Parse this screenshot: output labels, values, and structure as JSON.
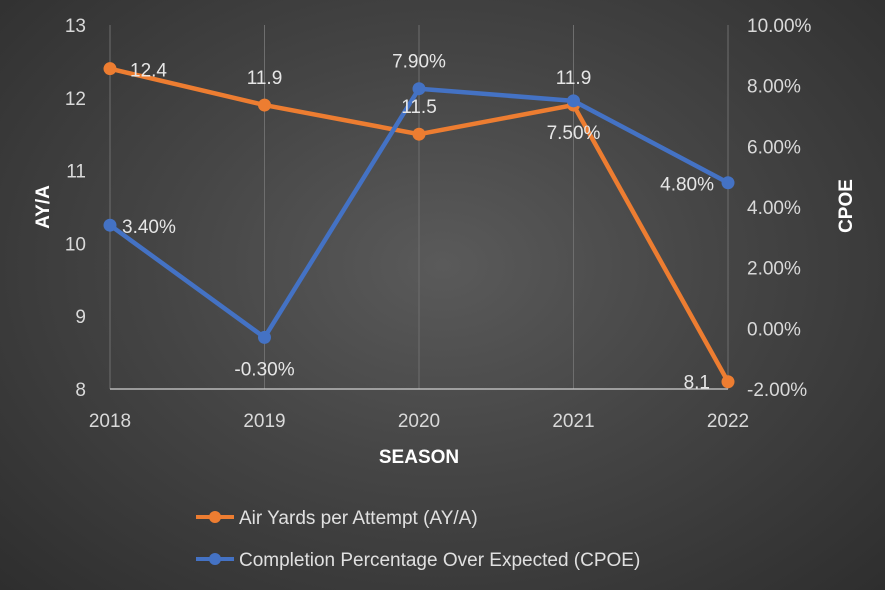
{
  "chart_data": {
    "type": "line",
    "categories": [
      "2018",
      "2019",
      "2020",
      "2021",
      "2022"
    ],
    "xlabel": "SEASON",
    "ylabel_left": "AY/A",
    "ylabel_right": "CPOE",
    "ylim_left": [
      8,
      13
    ],
    "ylim_right": [
      -2,
      10
    ],
    "left_ticks": [
      "8",
      "9",
      "10",
      "11",
      "12",
      "13"
    ],
    "right_ticks": [
      "-2.00%",
      "0.00%",
      "2.00%",
      "4.00%",
      "6.00%",
      "8.00%",
      "10.00%"
    ],
    "grid": "vertical",
    "legend_position": "bottom",
    "series": [
      {
        "name": "Air Yards per Attempt (AY/A)",
        "axis": "left",
        "color": "#ed7d31",
        "values": [
          12.4,
          11.9,
          11.5,
          11.9,
          8.1
        ],
        "labels": [
          "12.4",
          "11.9",
          "11.5",
          "11.9",
          "8.1"
        ]
      },
      {
        "name": "Completion Percentage Over Expected (CPOE)",
        "axis": "right",
        "color": "#4472c4",
        "values": [
          3.4,
          -0.3,
          7.9,
          7.5,
          4.8
        ],
        "labels": [
          "3.40%",
          "-0.30%",
          "7.90%",
          "7.50%",
          "4.80%"
        ]
      }
    ]
  }
}
